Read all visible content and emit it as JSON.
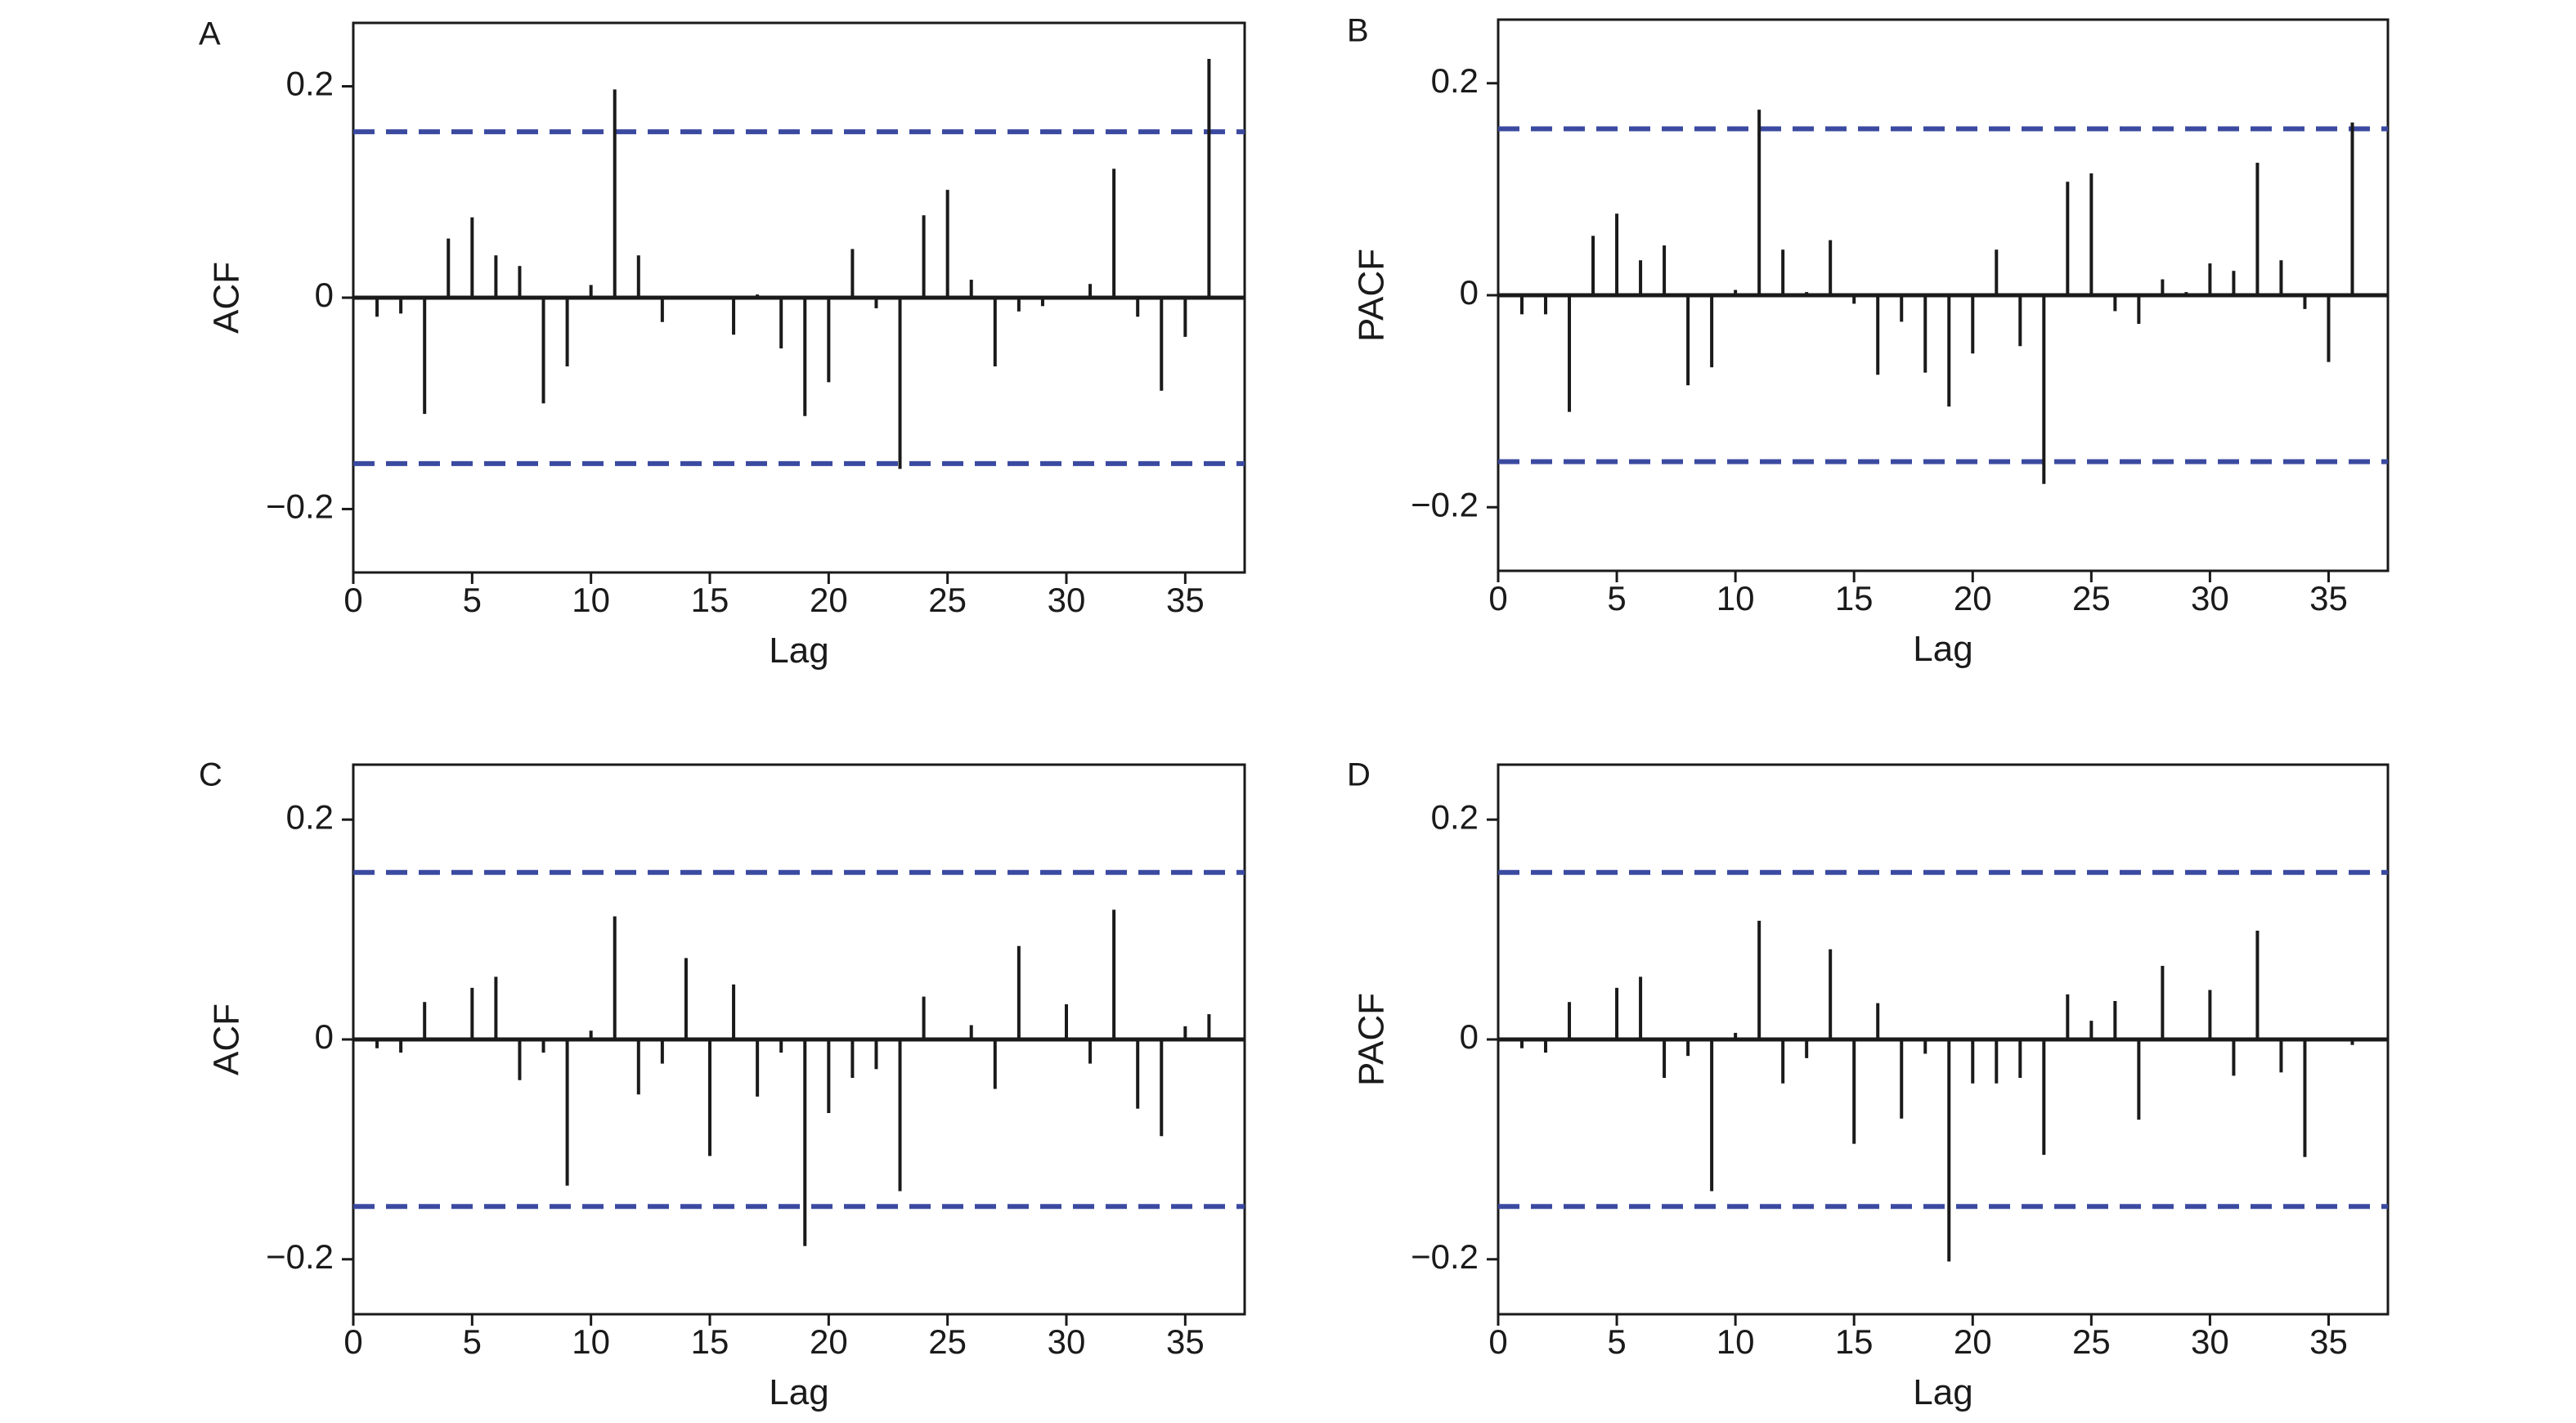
{
  "colors": {
    "bars": "#1a1a1a",
    "confidence_band": "#3b4aa0",
    "frame": "#1a1a1a"
  },
  "chart_data": [
    {
      "panel": "A",
      "type": "bar",
      "subtype": "acf-stem",
      "xlabel": "Lag",
      "ylabel": "ACF",
      "xlim": [
        0,
        37.5
      ],
      "ylim": [
        -0.26,
        0.26
      ],
      "xticks": [
        0,
        5,
        10,
        15,
        20,
        25,
        30,
        35
      ],
      "yticks": [
        -0.2,
        0,
        0.2
      ],
      "ytick_labels": [
        "−0.2",
        "0",
        "0.2"
      ],
      "confidence_limit": 0.157,
      "x": [
        1,
        2,
        3,
        4,
        5,
        6,
        7,
        8,
        9,
        10,
        11,
        12,
        13,
        14,
        15,
        16,
        17,
        18,
        19,
        20,
        21,
        22,
        23,
        24,
        25,
        26,
        27,
        28,
        29,
        30,
        31,
        32,
        33,
        34,
        35,
        36
      ],
      "values": [
        -0.018,
        -0.015,
        -0.11,
        0.056,
        0.076,
        0.04,
        0.03,
        -0.1,
        -0.065,
        0.012,
        0.197,
        0.04,
        -0.023,
        0.0,
        0.0,
        -0.035,
        0.003,
        -0.048,
        -0.112,
        -0.08,
        0.046,
        -0.01,
        -0.162,
        0.078,
        0.102,
        0.017,
        -0.065,
        -0.013,
        -0.008,
        0.0,
        0.013,
        0.122,
        -0.018,
        -0.088,
        -0.037,
        0.226
      ]
    },
    {
      "panel": "B",
      "type": "bar",
      "subtype": "pacf-stem",
      "xlabel": "Lag",
      "ylabel": "PACF",
      "xlim": [
        0,
        37.5
      ],
      "ylim": [
        -0.26,
        0.26
      ],
      "xticks": [
        0,
        5,
        10,
        15,
        20,
        25,
        30,
        35
      ],
      "yticks": [
        -0.2,
        0,
        0.2
      ],
      "ytick_labels": [
        "−0.2",
        "0",
        "0.2"
      ],
      "confidence_limit": 0.157,
      "x": [
        1,
        2,
        3,
        4,
        5,
        6,
        7,
        8,
        9,
        10,
        11,
        12,
        13,
        14,
        15,
        16,
        17,
        18,
        19,
        20,
        21,
        22,
        23,
        24,
        25,
        26,
        27,
        28,
        29,
        30,
        31,
        32,
        33,
        34,
        35,
        36
      ],
      "values": [
        -0.018,
        -0.018,
        -0.11,
        0.056,
        0.077,
        0.033,
        0.047,
        -0.085,
        -0.068,
        0.005,
        0.175,
        0.043,
        0.003,
        0.052,
        -0.008,
        -0.075,
        -0.025,
        -0.073,
        -0.105,
        -0.055,
        0.043,
        -0.048,
        -0.178,
        0.107,
        0.115,
        -0.015,
        -0.027,
        0.015,
        0.003,
        0.03,
        0.023,
        0.125,
        0.033,
        -0.013,
        -0.063,
        0.163
      ]
    },
    {
      "panel": "C",
      "type": "bar",
      "subtype": "acf-stem",
      "xlabel": "Lag",
      "ylabel": "ACF",
      "xlim": [
        0,
        37.5
      ],
      "ylim": [
        -0.25,
        0.25
      ],
      "xticks": [
        0,
        5,
        10,
        15,
        20,
        25,
        30,
        35
      ],
      "yticks": [
        -0.2,
        0,
        0.2
      ],
      "ytick_labels": [
        "−0.2",
        "0",
        "0.2"
      ],
      "confidence_limit": 0.152,
      "x": [
        1,
        2,
        3,
        4,
        5,
        6,
        7,
        8,
        9,
        10,
        11,
        12,
        13,
        14,
        15,
        16,
        17,
        18,
        19,
        20,
        21,
        22,
        23,
        24,
        25,
        26,
        27,
        28,
        29,
        30,
        31,
        32,
        33,
        34,
        35,
        36
      ],
      "values": [
        -0.008,
        -0.012,
        0.034,
        0.0,
        0.047,
        0.057,
        -0.037,
        -0.012,
        -0.133,
        0.008,
        0.112,
        -0.05,
        -0.022,
        0.074,
        -0.106,
        0.05,
        -0.052,
        -0.012,
        -0.188,
        -0.067,
        -0.035,
        -0.027,
        -0.138,
        0.039,
        0.0,
        0.013,
        -0.045,
        0.085,
        0.0,
        0.032,
        -0.022,
        0.118,
        -0.063,
        -0.088,
        0.012,
        0.023
      ]
    },
    {
      "panel": "D",
      "type": "bar",
      "subtype": "pacf-stem",
      "xlabel": "Lag",
      "ylabel": "PACF",
      "xlim": [
        0,
        37.5
      ],
      "ylim": [
        -0.25,
        0.25
      ],
      "xticks": [
        0,
        5,
        10,
        15,
        20,
        25,
        30,
        35
      ],
      "yticks": [
        -0.2,
        0,
        0.2
      ],
      "ytick_labels": [
        "−0.2",
        "0",
        "0.2"
      ],
      "confidence_limit": 0.152,
      "x": [
        1,
        2,
        3,
        4,
        5,
        6,
        7,
        8,
        9,
        10,
        11,
        12,
        13,
        14,
        15,
        16,
        17,
        18,
        19,
        20,
        21,
        22,
        23,
        24,
        25,
        26,
        27,
        28,
        29,
        30,
        31,
        32,
        33,
        34,
        35,
        36
      ],
      "values": [
        -0.008,
        -0.012,
        0.034,
        0.0,
        0.047,
        0.057,
        -0.035,
        -0.015,
        -0.138,
        0.006,
        0.108,
        -0.04,
        -0.017,
        0.082,
        -0.095,
        0.033,
        -0.072,
        -0.013,
        -0.202,
        -0.04,
        -0.04,
        -0.035,
        -0.105,
        0.041,
        0.017,
        0.035,
        -0.073,
        0.067,
        0.0,
        0.045,
        -0.033,
        0.099,
        -0.03,
        -0.107,
        0.0,
        -0.005
      ]
    }
  ]
}
